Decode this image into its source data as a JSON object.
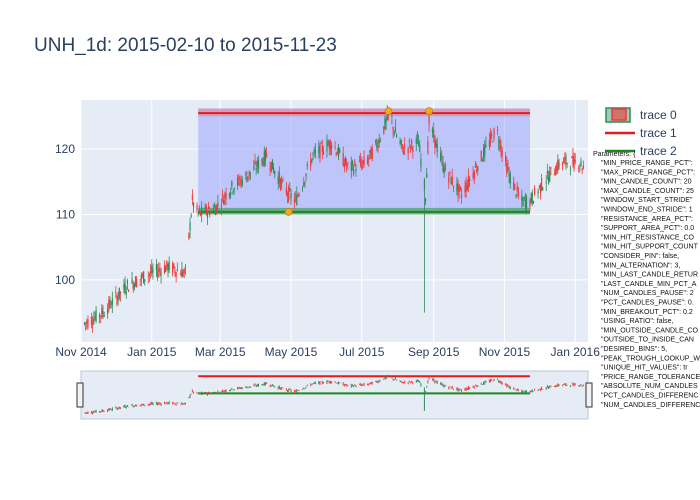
{
  "title": "UNH_1d: 2015-02-10 to 2015-11-23",
  "colors": {
    "paper": "#ffffff",
    "plot_bg": "#e5ecf6",
    "grid": "#ffffff",
    "increasing": "#2e8b57",
    "decreasing": "#ef3b3b",
    "resistance_line": "#e41a1c",
    "support_line": "#1a8a1a",
    "resistance_zone": "rgba(240,90,90,0.35)",
    "support_zone": "rgba(40,150,60,0.55)",
    "range_box": "rgba(140,150,255,0.45)",
    "hit_marker": "#f5a623"
  },
  "legend": [
    {
      "label": "trace 0",
      "icon": "candlestick-icon"
    },
    {
      "label": "trace 1",
      "icon": "red-line-icon"
    },
    {
      "label": "trace 2",
      "icon": "green-line-icon"
    }
  ],
  "parameters": {
    "header": "Parameters: {",
    "lines": [
      "\"MIN_PRICE_RANGE_PCT\":",
      "\"MAX_PRICE_RANGE_PCT\":",
      "\"MIN_CANDLE_COUNT\": 20",
      "\"MAX_CANDLE_COUNT\": 25",
      "\"WINDOW_START_STRIDE\"",
      "\"WINDOW_END_STRIDE\": 1",
      "\"RESISTANCE_AREA_PCT\":",
      "\"SUPPORT_AREA_PCT\": 0.0",
      "\"MIN_HIT_RESISTANCE_CO",
      "\"MIN_HIT_SUPPORT_COUNT",
      "\"CONSIDER_PIN\": false,",
      "\"MIN_ALTERNATION\": 3,",
      "\"MIN_LAST_CANDLE_RETUR",
      "\"LAST_CANDLE_MIN_PCT_A",
      "\"NUM_CANDLES_PAUSE\": 2",
      "\"PCT_CANDLES_PAUSE\": 0.",
      "\"MIN_BREAKOUT_PCT\": 0.2",
      "\"USING_RATIO\": false,",
      "\"MIN_OUTSIDE_CANDLE_CO",
      "\"OUTSIDE_TO_INSIDE_CAN",
      "\"DESIRED_BINS\": 5,",
      "\"PEAK_TROUGH_LOOKUP_W",
      "\"UNIQUE_HIT_VALUES\": tr",
      "\"PRICE_RANGE_TOLERANCE",
      "\"ABSOLUTE_NUM_CANDLES",
      "\"PCT_CANDLES_DIFFERENC",
      "\"NUM_CANDLES_DIFFERENC"
    ]
  },
  "chart_data": {
    "type": "candlestick",
    "title": "UNH_1d: 2015-02-10 to 2015-11-23",
    "x_tick_labels": [
      "Nov 2014",
      "Jan 2015",
      "Mar 2015",
      "May 2015",
      "Jul 2015",
      "Sep 2015",
      "Nov 2015",
      "Jan 2016"
    ],
    "y_tick_labels": [
      "100",
      "110",
      "120"
    ],
    "xlim": [
      "2014-11-01",
      "2016-01-12"
    ],
    "ylim": [
      90.5,
      127.5
    ],
    "grid": true,
    "legend_position": "right",
    "resistance_level": 125.5,
    "resistance_zone": [
      125.0,
      126.2
    ],
    "support_level": 110.4,
    "support_zone": [
      110.0,
      111.0
    ],
    "pattern_window": [
      "2015-02-10",
      "2015-11-23"
    ],
    "lines_span": [
      "2015-02-10",
      "2015-11-23"
    ],
    "resistance_hits": [
      {
        "date": "2015-07-24",
        "value": 125.8
      },
      {
        "date": "2015-08-28",
        "value": 125.8
      }
    ],
    "support_hits": [
      {
        "date": "2015-04-29",
        "value": 110.4
      }
    ],
    "price_path": [
      [
        "2014-11-01",
        93
      ],
      [
        "2014-11-20",
        95
      ],
      [
        "2014-12-10",
        99
      ],
      [
        "2014-12-31",
        101
      ],
      [
        "2015-01-15",
        102
      ],
      [
        "2015-01-30",
        101
      ],
      [
        "2015-02-05",
        112
      ],
      [
        "2015-02-10",
        110
      ],
      [
        "2015-02-25",
        111
      ],
      [
        "2015-03-10",
        114
      ],
      [
        "2015-03-25",
        116
      ],
      [
        "2015-04-10",
        119
      ],
      [
        "2015-04-25",
        114
      ],
      [
        "2015-05-05",
        112
      ],
      [
        "2015-05-20",
        119
      ],
      [
        "2015-06-05",
        121
      ],
      [
        "2015-06-20",
        117
      ],
      [
        "2015-07-05",
        118
      ],
      [
        "2015-07-15",
        121
      ],
      [
        "2015-07-24",
        125
      ],
      [
        "2015-08-05",
        120
      ],
      [
        "2015-08-19",
        121
      ],
      [
        "2015-08-25",
        113
      ],
      [
        "2015-08-28",
        124
      ],
      [
        "2015-09-10",
        117
      ],
      [
        "2015-09-25",
        113
      ],
      [
        "2015-10-10",
        118
      ],
      [
        "2015-10-25",
        123
      ],
      [
        "2015-11-05",
        116
      ],
      [
        "2015-11-15",
        112
      ],
      [
        "2015-11-23",
        112
      ],
      [
        "2015-12-05",
        115
      ],
      [
        "2015-12-20",
        118
      ],
      [
        "2016-01-05",
        118
      ],
      [
        "2016-01-12",
        116
      ]
    ],
    "wick_outliers": [
      {
        "date": "2015-08-24",
        "low": 95.0
      }
    ]
  }
}
